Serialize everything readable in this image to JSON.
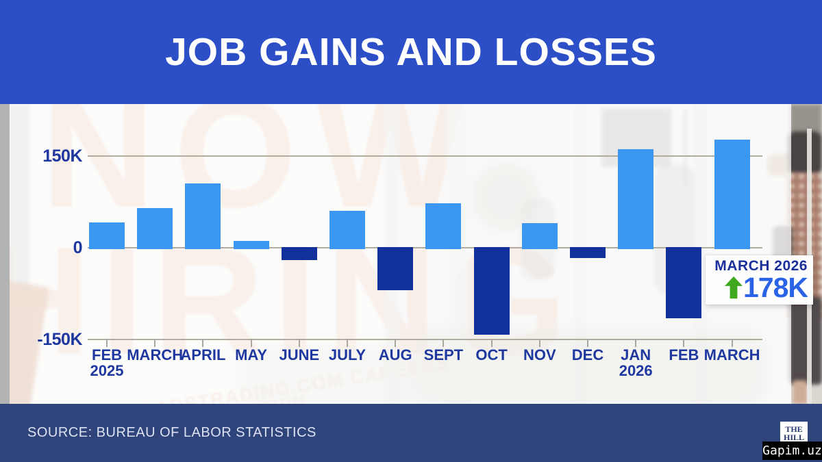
{
  "header": {
    "title": "JOB GAINS AND LOSSES"
  },
  "chart_data": {
    "type": "bar",
    "title": "JOB GAINS AND LOSSES",
    "unit": "jobs, thousands (K)",
    "categories": [
      {
        "label": "FEB",
        "sublabel": "2025"
      },
      {
        "label": "MARCH"
      },
      {
        "label": "APRIL"
      },
      {
        "label": "MAY"
      },
      {
        "label": "JUNE"
      },
      {
        "label": "JULY"
      },
      {
        "label": "AUG"
      },
      {
        "label": "SEPT"
      },
      {
        "label": "OCT"
      },
      {
        "label": "NOV"
      },
      {
        "label": "DEC"
      },
      {
        "label": "JAN",
        "sublabel": "2026"
      },
      {
        "label": "FEB"
      },
      {
        "label": "MARCH"
      }
    ],
    "values_k": [
      42,
      66,
      106,
      12,
      -20,
      62,
      -69,
      74,
      -142,
      41,
      -17,
      162,
      -115,
      178
    ],
    "yticks": [
      {
        "label": "150K",
        "value": 150
      },
      {
        "label": "0",
        "value": 0
      },
      {
        "label": "-150K",
        "value": -150
      }
    ],
    "ylim_k": [
      -165,
      190
    ],
    "grid": true,
    "legend": "none",
    "positive_color": "#3b97f2",
    "negative_color": "#12309c"
  },
  "callout": {
    "month": "MARCH 2026",
    "value": "178K",
    "direction": "up"
  },
  "footer": {
    "source": "SOURCE: BUREAU OF LABOR STATISTICS"
  },
  "logo": {
    "line1": "THE",
    "line2": "HILL"
  },
  "watermark": {
    "text": "Gapim.uz"
  },
  "background_sign": {
    "line1": "NOW",
    "line2": "HIRING",
    "small_line1": "ROADSTRADING.COM CAREERS",
    "small_line2": "RE WITHIN"
  },
  "colors": {
    "header_bg": "#2c4fc7",
    "footer_bg": "#30447c",
    "axis_text": "#1e38a0",
    "gridline": "#b0ad9f",
    "callout_month": "#1b2f9a",
    "callout_value": "#2b63e6",
    "arrow_green": "#3fa81f",
    "footer_text": "#dce2f2",
    "logo_text": "#27386f"
  }
}
